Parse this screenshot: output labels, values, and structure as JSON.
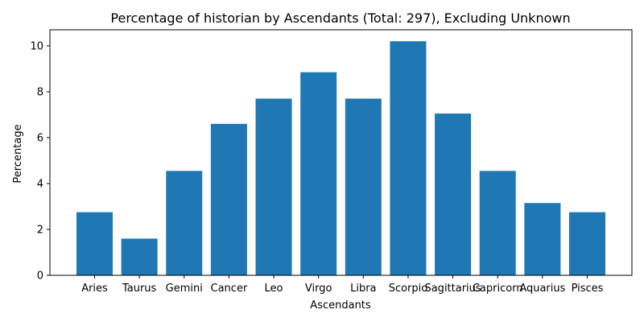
{
  "chart_data": {
    "type": "bar",
    "title": "Percentage of historian by Ascendants (Total: 297), Excluding Unknown",
    "xlabel": "Ascendants",
    "ylabel": "Percentage",
    "categories": [
      "Aries",
      "Taurus",
      "Gemini",
      "Cancer",
      "Leo",
      "Virgo",
      "Libra",
      "Scorpio",
      "Sagittarius",
      "Capricorn",
      "Aquarius",
      "Pisces"
    ],
    "values": [
      2.75,
      1.6,
      4.55,
      6.6,
      7.7,
      8.85,
      7.7,
      10.2,
      7.05,
      4.55,
      3.15,
      2.75
    ],
    "ylim": [
      0,
      10.7
    ],
    "yticks": [
      0,
      2,
      4,
      6,
      8,
      10
    ],
    "grid": false,
    "colors": {
      "bar": "#1f77b4"
    }
  }
}
